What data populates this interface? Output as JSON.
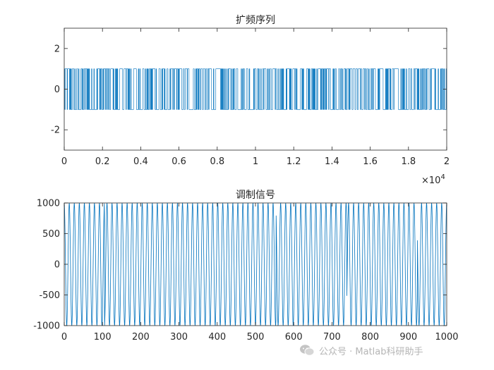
{
  "chart_data": [
    {
      "type": "line",
      "title": "扩频序列",
      "xlabel": "",
      "ylabel": "",
      "xlim": [
        0,
        20000
      ],
      "ylim": [
        -3,
        3
      ],
      "x_ticks": [
        0,
        0.2,
        0.4,
        0.6,
        0.8,
        1,
        1.2,
        1.4,
        1.6,
        1.8,
        2
      ],
      "x_tick_labels": [
        "0",
        "0.2",
        "0.4",
        "0.6",
        "0.8",
        "1",
        "1.2",
        "1.4",
        "1.6",
        "1.8",
        "2"
      ],
      "x_exponent_label": "×10",
      "x_exponent": "4",
      "y_ticks": [
        -2,
        0,
        2
      ],
      "y_tick_labels": [
        "-2",
        "0",
        "2"
      ],
      "grid": false,
      "series": [
        {
          "levels": [
            -1,
            1
          ],
          "description_values": "binary ±1 sequence over x = 0 … 20000",
          "color": "#0072BD"
        }
      ]
    },
    {
      "type": "line",
      "title": "调制信号",
      "xlabel": "",
      "ylabel": "",
      "xlim": [
        0,
        1000
      ],
      "ylim": [
        -1000,
        1000
      ],
      "x_ticks": [
        0,
        100,
        200,
        300,
        400,
        500,
        600,
        700,
        800,
        900,
        1000
      ],
      "x_tick_labels": [
        "0",
        "100",
        "200",
        "300",
        "400",
        "500",
        "600",
        "700",
        "800",
        "900",
        "1000"
      ],
      "y_ticks": [
        -1000,
        -500,
        0,
        500,
        1000
      ],
      "y_tick_labels": [
        "-1000",
        "-500",
        "0",
        "500",
        "1000"
      ],
      "grid": false,
      "series": [
        {
          "amplitude": 1000,
          "cycles_in_view": 76,
          "color": "#0072BD"
        }
      ]
    }
  ],
  "watermark": {
    "text": "公众号 · Matlab科研助手",
    "icon": "wechat-icon"
  }
}
